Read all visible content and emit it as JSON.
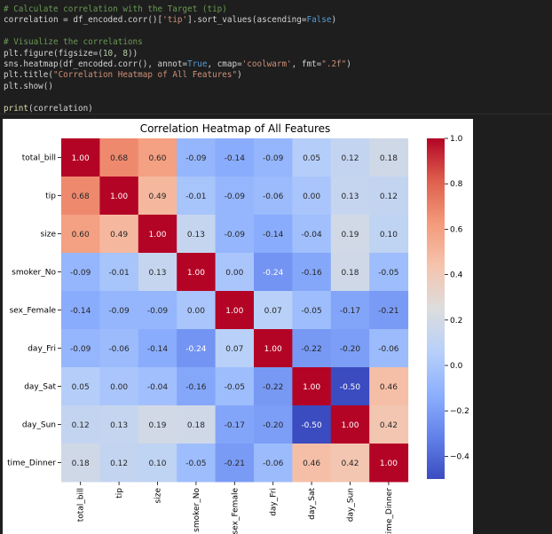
{
  "code": {
    "lines": [
      [
        {
          "t": "# Calculate correlation with the Target (tip)",
          "c": "comment"
        }
      ],
      [
        {
          "t": "correlation = df_encoded.corr()[",
          "c": "plain"
        },
        {
          "t": "'tip'",
          "c": "str"
        },
        {
          "t": "].sort_values(ascending=",
          "c": "plain"
        },
        {
          "t": "False",
          "c": "kw"
        },
        {
          "t": ")",
          "c": "plain"
        }
      ],
      [
        {
          "t": "",
          "c": "plain"
        }
      ],
      [
        {
          "t": "# Visualize the correlations",
          "c": "comment"
        }
      ],
      [
        {
          "t": "plt.figure(figsize=(",
          "c": "plain"
        },
        {
          "t": "10",
          "c": "num"
        },
        {
          "t": ", ",
          "c": "plain"
        },
        {
          "t": "8",
          "c": "num"
        },
        {
          "t": "))",
          "c": "plain"
        }
      ],
      [
        {
          "t": "sns.heatmap(df_encoded.corr(), annot=",
          "c": "plain"
        },
        {
          "t": "True",
          "c": "kw"
        },
        {
          "t": ", cmap=",
          "c": "plain"
        },
        {
          "t": "'coolwarm'",
          "c": "str"
        },
        {
          "t": ", fmt=",
          "c": "plain"
        },
        {
          "t": "\".2f\"",
          "c": "str"
        },
        {
          "t": ")",
          "c": "plain"
        }
      ],
      [
        {
          "t": "plt.title(",
          "c": "plain"
        },
        {
          "t": "\"Correlation Heatmap of All Features\"",
          "c": "str"
        },
        {
          "t": ")",
          "c": "plain"
        }
      ],
      [
        {
          "t": "plt.show()",
          "c": "plain"
        }
      ],
      [
        {
          "t": "",
          "c": "plain"
        }
      ],
      [
        {
          "t": "print",
          "c": "fn"
        },
        {
          "t": "(correlation)",
          "c": "plain"
        }
      ]
    ]
  },
  "chart_data": {
    "type": "heatmap",
    "title": "Correlation Heatmap of All Features",
    "labels": [
      "total_bill",
      "tip",
      "size",
      "smoker_No",
      "sex_Female",
      "day_Fri",
      "day_Sat",
      "day_Sun",
      "time_Dinner"
    ],
    "matrix": [
      [
        1.0,
        0.68,
        0.6,
        -0.09,
        -0.14,
        -0.09,
        0.05,
        0.12,
        0.18
      ],
      [
        0.68,
        1.0,
        0.49,
        -0.01,
        -0.09,
        -0.06,
        -0.0,
        0.13,
        0.12
      ],
      [
        0.6,
        0.49,
        1.0,
        0.13,
        -0.09,
        -0.14,
        -0.04,
        0.19,
        0.1
      ],
      [
        -0.09,
        -0.01,
        0.13,
        1.0,
        0.0,
        -0.24,
        -0.16,
        0.18,
        -0.05
      ],
      [
        -0.14,
        -0.09,
        -0.09,
        0.0,
        1.0,
        0.07,
        -0.05,
        -0.17,
        -0.21
      ],
      [
        -0.09,
        -0.06,
        -0.14,
        -0.24,
        0.07,
        1.0,
        -0.22,
        -0.2,
        -0.06
      ],
      [
        0.05,
        -0.0,
        -0.04,
        -0.16,
        -0.05,
        -0.22,
        1.0,
        -0.5,
        0.46
      ],
      [
        0.12,
        0.13,
        0.19,
        0.18,
        -0.17,
        -0.2,
        -0.5,
        1.0,
        0.42
      ],
      [
        0.18,
        0.12,
        0.1,
        -0.05,
        -0.21,
        -0.06,
        0.46,
        0.42,
        1.0
      ]
    ],
    "colormap": "coolwarm",
    "colorbar": {
      "range": [
        -0.5,
        1.0
      ],
      "ticks": [
        1.0,
        0.8,
        0.6,
        0.4,
        0.2,
        0.0,
        -0.2,
        -0.4
      ],
      "tick_labels": [
        "1.0",
        "0.8",
        "0.6",
        "0.4",
        "0.2",
        "0.0",
        "−0.2",
        "−0.4"
      ]
    },
    "annot_format": ".2f",
    "grid": false
  }
}
